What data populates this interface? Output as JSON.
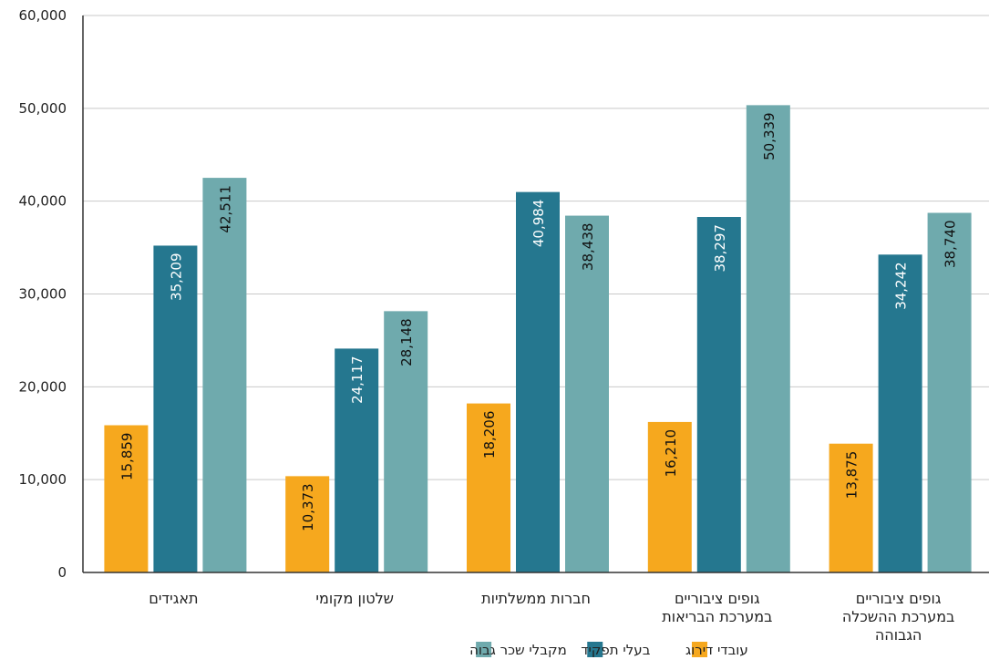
{
  "chart_data": {
    "type": "bar",
    "title": "",
    "xlabel": "",
    "ylabel": "",
    "ylim": [
      0,
      60000
    ],
    "yticks": [
      0,
      10000,
      20000,
      30000,
      40000,
      50000,
      60000
    ],
    "ytick_labels": [
      "0",
      "10,000",
      "20,000",
      "30,000",
      "40,000",
      "50,000",
      "60,000"
    ],
    "grid": true,
    "legend_position": "bottom",
    "categories": [
      [
        "תאגידים"
      ],
      [
        "שלטון מקומי"
      ],
      [
        "חברות ממשלתיות"
      ],
      [
        "גופים ציבוריים",
        "במערכת הבריאות"
      ],
      [
        "גופים ציבוריים",
        "במערכת ההשכלה",
        "הגבוהה"
      ]
    ],
    "series": [
      {
        "name": "עובדי דירוג",
        "color": "#F6A81E",
        "values": [
          15859,
          10373,
          18206,
          16210,
          13875
        ],
        "labels": [
          "15,859",
          "10,373",
          "18,206",
          "16,210",
          "13,875"
        ],
        "label_color": "#111111"
      },
      {
        "name": "בעלי תפקיד",
        "color": "#25778F",
        "values": [
          35209,
          24117,
          40984,
          38297,
          34242
        ],
        "labels": [
          "35,209",
          "24,117",
          "40,984",
          "38,297",
          "34,242"
        ],
        "label_color": "#ffffff"
      },
      {
        "name": "מקבלי שכר גבוה",
        "color": "#6FAAAD",
        "values": [
          42511,
          28148,
          38438,
          50339,
          38740
        ],
        "labels": [
          "42,511",
          "28,148",
          "38,438",
          "50,339",
          "38,740"
        ],
        "label_color": "#111111"
      }
    ]
  }
}
